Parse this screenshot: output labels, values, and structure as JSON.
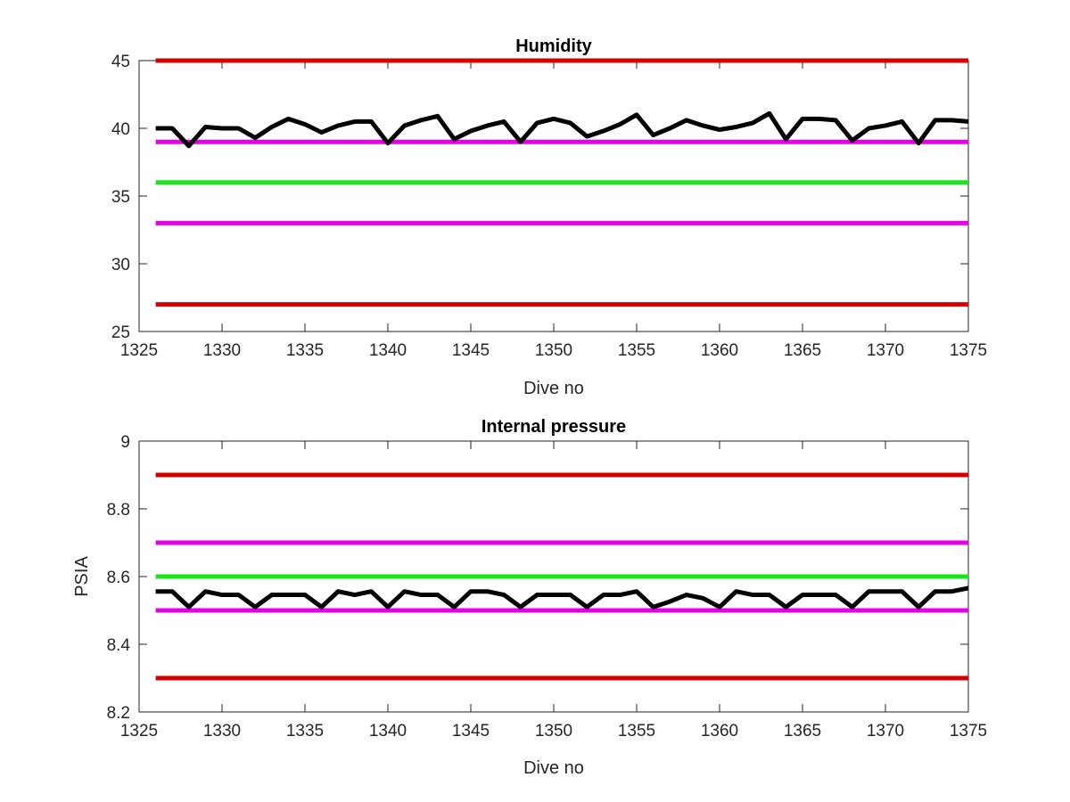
{
  "chart_data": [
    {
      "type": "line",
      "title": "Humidity",
      "xlabel": "Dive no",
      "ylabel": "",
      "xlim": [
        1325,
        1375
      ],
      "ylim": [
        25,
        45
      ],
      "xticks": [
        1325,
        1330,
        1335,
        1340,
        1345,
        1350,
        1355,
        1360,
        1365,
        1370,
        1375
      ],
      "yticks": [
        25,
        30,
        35,
        40,
        45
      ],
      "xtick_labels": [
        "1325",
        "1330",
        "1335",
        "1340",
        "1345",
        "1350",
        "1355",
        "1360",
        "1365",
        "1370",
        "1375"
      ],
      "ytick_labels": [
        "25",
        "30",
        "35",
        "40",
        "45"
      ],
      "grid": false,
      "series": [
        {
          "color": "#d40000",
          "x": [
            1326,
            1375
          ],
          "y": [
            45,
            45
          ]
        },
        {
          "color": "#e600e6",
          "x": [
            1326,
            1375
          ],
          "y": [
            39,
            39
          ]
        },
        {
          "color": "#19e619",
          "x": [
            1326,
            1375
          ],
          "y": [
            36,
            36
          ]
        },
        {
          "color": "#e600e6",
          "x": [
            1326,
            1375
          ],
          "y": [
            33,
            33
          ]
        },
        {
          "color": "#d40000",
          "x": [
            1326,
            1375
          ],
          "y": [
            27,
            27
          ]
        },
        {
          "color": "#000000",
          "x": [
            1326,
            1327,
            1328,
            1329,
            1330,
            1331,
            1332,
            1333,
            1334,
            1335,
            1336,
            1337,
            1338,
            1339,
            1340,
            1341,
            1342,
            1343,
            1344,
            1345,
            1346,
            1347,
            1348,
            1349,
            1350,
            1351,
            1352,
            1353,
            1354,
            1355,
            1356,
            1357,
            1358,
            1359,
            1360,
            1361,
            1362,
            1363,
            1364,
            1365,
            1366,
            1367,
            1368,
            1369,
            1370,
            1371,
            1372,
            1373,
            1374,
            1375
          ],
          "y": [
            40.0,
            40.0,
            38.7,
            40.1,
            40.0,
            40.0,
            39.3,
            40.1,
            40.7,
            40.3,
            39.7,
            40.2,
            40.5,
            40.5,
            38.9,
            40.2,
            40.6,
            40.9,
            39.2,
            39.8,
            40.2,
            40.5,
            39.0,
            40.4,
            40.7,
            40.4,
            39.4,
            39.8,
            40.3,
            41.0,
            39.5,
            40.0,
            40.6,
            40.2,
            39.9,
            40.1,
            40.4,
            41.1,
            39.2,
            40.7,
            40.7,
            40.6,
            39.1,
            40.0,
            40.2,
            40.5,
            38.9,
            40.6,
            40.6,
            40.5
          ]
        }
      ]
    },
    {
      "type": "line",
      "title": "Internal pressure",
      "xlabel": "Dive no",
      "ylabel": "PSIA",
      "xlim": [
        1325,
        1375
      ],
      "ylim": [
        8.2,
        9
      ],
      "xticks": [
        1325,
        1330,
        1335,
        1340,
        1345,
        1350,
        1355,
        1360,
        1365,
        1370,
        1375
      ],
      "yticks": [
        8.2,
        8.4,
        8.6,
        8.8,
        9
      ],
      "xtick_labels": [
        "1325",
        "1330",
        "1335",
        "1340",
        "1345",
        "1350",
        "1355",
        "1360",
        "1365",
        "1370",
        "1375"
      ],
      "ytick_labels": [
        "8.2",
        "8.4",
        "8.6",
        "8.8",
        "9"
      ],
      "grid": false,
      "series": [
        {
          "color": "#d40000",
          "x": [
            1326,
            1375
          ],
          "y": [
            8.9,
            8.9
          ]
        },
        {
          "color": "#e600e6",
          "x": [
            1326,
            1375
          ],
          "y": [
            8.7,
            8.7
          ]
        },
        {
          "color": "#19e619",
          "x": [
            1326,
            1375
          ],
          "y": [
            8.6,
            8.6
          ]
        },
        {
          "color": "#e600e6",
          "x": [
            1326,
            1375
          ],
          "y": [
            8.5,
            8.5
          ]
        },
        {
          "color": "#d40000",
          "x": [
            1326,
            1375
          ],
          "y": [
            8.3,
            8.3
          ]
        },
        {
          "color": "#000000",
          "x": [
            1326,
            1327,
            1328,
            1329,
            1330,
            1331,
            1332,
            1333,
            1334,
            1335,
            1336,
            1337,
            1338,
            1339,
            1340,
            1341,
            1342,
            1343,
            1344,
            1345,
            1346,
            1347,
            1348,
            1349,
            1350,
            1351,
            1352,
            1353,
            1354,
            1355,
            1356,
            1357,
            1358,
            1359,
            1360,
            1361,
            1362,
            1363,
            1364,
            1365,
            1366,
            1367,
            1368,
            1369,
            1370,
            1371,
            1372,
            1373,
            1374,
            1375
          ],
          "y": [
            8.556,
            8.556,
            8.51,
            8.556,
            8.546,
            8.546,
            8.51,
            8.546,
            8.546,
            8.546,
            8.51,
            8.556,
            8.546,
            8.556,
            8.51,
            8.556,
            8.546,
            8.546,
            8.51,
            8.556,
            8.556,
            8.546,
            8.51,
            8.546,
            8.546,
            8.546,
            8.51,
            8.546,
            8.546,
            8.556,
            8.51,
            8.526,
            8.546,
            8.536,
            8.51,
            8.556,
            8.546,
            8.546,
            8.51,
            8.546,
            8.546,
            8.546,
            8.51,
            8.556,
            8.556,
            8.556,
            8.51,
            8.556,
            8.556,
            8.566
          ]
        }
      ]
    }
  ]
}
